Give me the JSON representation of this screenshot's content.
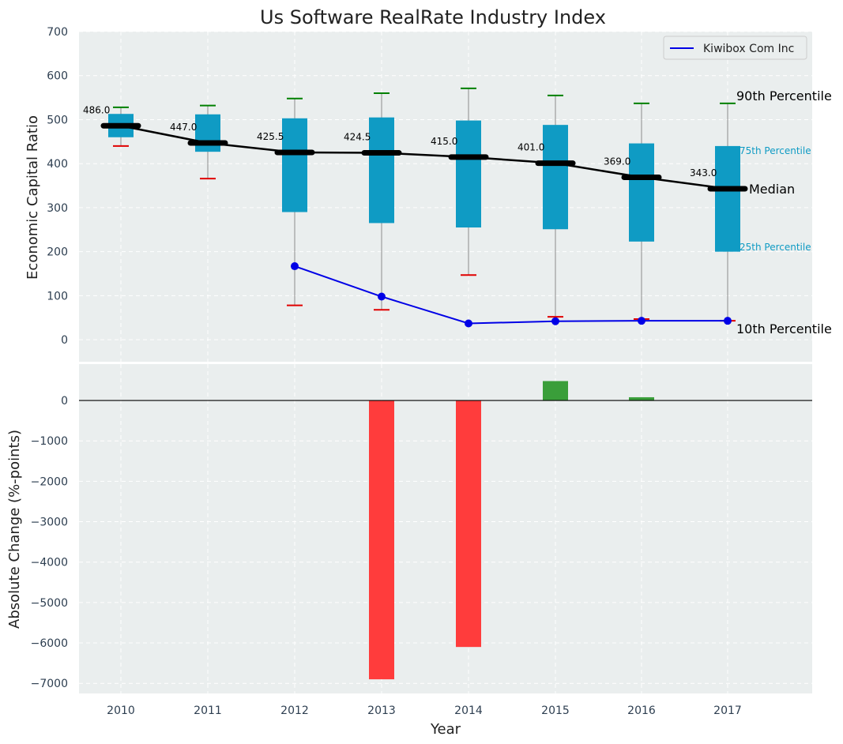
{
  "chart_data": [
    {
      "type": "box",
      "title": "Us Software RealRate Industry Index",
      "ylabel": "Economic Capital Ratio",
      "ylim": [
        -50,
        700
      ],
      "yticks": [
        0,
        100,
        200,
        300,
        400,
        500,
        600,
        700
      ],
      "categories": [
        "2010",
        "2011",
        "2012",
        "2013",
        "2014",
        "2015",
        "2016",
        "2017"
      ],
      "boxes": [
        {
          "year": "2010",
          "p10": 440,
          "p25": 460,
          "median": 486,
          "p75": 513,
          "p90": 528
        },
        {
          "year": "2011",
          "p10": 366,
          "p25": 427,
          "median": 447,
          "p75": 512,
          "p90": 532
        },
        {
          "year": "2012",
          "p10": 78,
          "p25": 290,
          "median": 425.5,
          "p75": 503,
          "p90": 548
        },
        {
          "year": "2013",
          "p10": 68,
          "p25": 265,
          "median": 424.5,
          "p75": 505,
          "p90": 560
        },
        {
          "year": "2014",
          "p10": 147,
          "p25": 255,
          "median": 415,
          "p75": 498,
          "p90": 571
        },
        {
          "year": "2015",
          "p10": 52,
          "p25": 251,
          "median": 401,
          "p75": 488,
          "p90": 555
        },
        {
          "year": "2016",
          "p10": 47,
          "p25": 223,
          "median": 369,
          "p75": 446,
          "p90": 537
        },
        {
          "year": "2017",
          "p10": 43,
          "p25": 200,
          "median": 343,
          "p75": 440,
          "p90": 537
        }
      ],
      "median_labels": [
        "486.0",
        "447.0",
        "425.5",
        "424.5",
        "415.0",
        "401.0",
        "369.0",
        "343.0"
      ],
      "series": [
        {
          "name": "Kiwibox Com Inc",
          "x": [
            "2012",
            "2013",
            "2014",
            "2015",
            "2016",
            "2017"
          ],
          "values": [
            167,
            98,
            37,
            42,
            43,
            43
          ]
        }
      ],
      "legend": {
        "position": "top-right",
        "entries": [
          "Kiwibox Com Inc"
        ]
      },
      "annotations": {
        "p90": "90th Percentile",
        "p75": "75th Percentile",
        "median": "Median",
        "p25": "25th Percentile",
        "p10": "10th Percentile"
      }
    },
    {
      "type": "bar",
      "ylabel": "Absolute Change (%-points)",
      "xlabel": "Year",
      "ylim": [
        -7250,
        900
      ],
      "yticks": [
        0,
        -1000,
        -2000,
        -3000,
        -4000,
        -5000,
        -6000,
        -7000
      ],
      "ytick_labels": [
        "0",
        "−1000",
        "−2000",
        "−3000",
        "−4000",
        "−5000",
        "−6000",
        "−7000"
      ],
      "categories": [
        "2010",
        "2011",
        "2012",
        "2013",
        "2014",
        "2015",
        "2016",
        "2017"
      ],
      "values": [
        0,
        0,
        0,
        -6900,
        -6100,
        480,
        80,
        0
      ]
    }
  ],
  "colors": {
    "plot_bg": "#eaeeee",
    "grid": "#ffffff",
    "box": "#0f9bc4",
    "median": "#000000",
    "whisker": "#8c8c8c",
    "p90_cap": "#008000",
    "p10_cap": "#e00000",
    "company": "#0000e6",
    "bar_pos": "#3a9e3a",
    "bar_neg": "#ff3c3c"
  }
}
